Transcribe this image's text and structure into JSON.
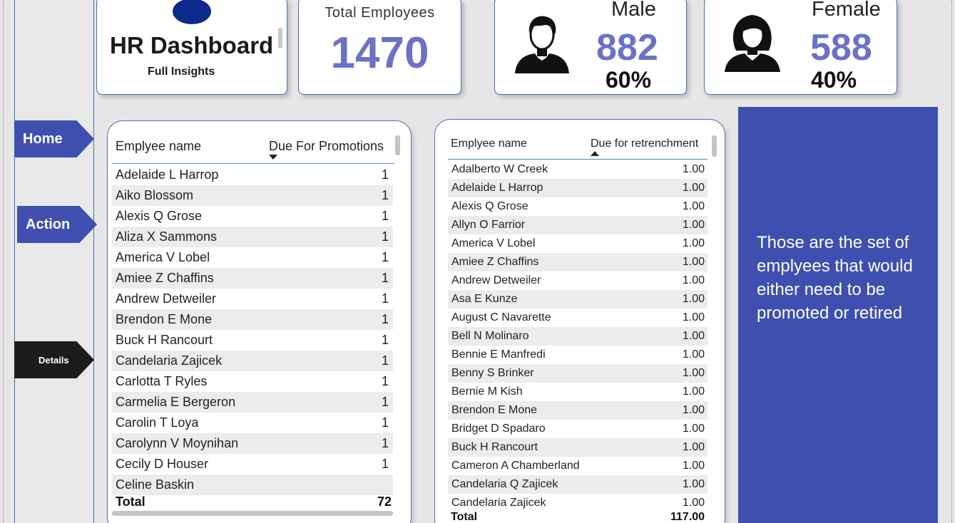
{
  "nav": {
    "home": "Home",
    "action": "Action",
    "details": "Details"
  },
  "header": {
    "title": "HR Dashboard",
    "subtitle": "Full Insights"
  },
  "kpi": {
    "total_label": "Total Employees",
    "total_value": "1470",
    "male_label": "Male",
    "male_value": "882",
    "male_pct": "60%",
    "female_label": "Female",
    "female_value": "588",
    "female_pct": "40%"
  },
  "promotions": {
    "col_name": "Emplyee name",
    "col_value": "Due For Promotions",
    "rows": [
      {
        "name": "Adelaide L Harrop",
        "value": "1"
      },
      {
        "name": "Aiko Blossom",
        "value": "1"
      },
      {
        "name": "Alexis Q Grose",
        "value": "1"
      },
      {
        "name": "Aliza X Sammons",
        "value": "1"
      },
      {
        "name": "America V Lobel",
        "value": "1"
      },
      {
        "name": "Amiee Z Chaffins",
        "value": "1"
      },
      {
        "name": "Andrew Detweiler",
        "value": "1"
      },
      {
        "name": "Brendon E Mone",
        "value": "1"
      },
      {
        "name": "Buck H Rancourt",
        "value": "1"
      },
      {
        "name": "Candelaria Zajicek",
        "value": "1"
      },
      {
        "name": "Carlotta T Ryles",
        "value": "1"
      },
      {
        "name": "Carmelia E Bergeron",
        "value": "1"
      },
      {
        "name": "Carolin T Loya",
        "value": "1"
      },
      {
        "name": "Carolynn V Moynihan",
        "value": "1"
      },
      {
        "name": "Cecily D Houser",
        "value": "1"
      },
      {
        "name": "Celine Baskin",
        "value": ""
      }
    ],
    "total_label": "Total",
    "total_value": "72"
  },
  "retrenchment": {
    "col_name": "Emplyee name",
    "col_value": "Due for retrenchment",
    "rows": [
      {
        "name": "Adalberto W Creek",
        "value": "1.00"
      },
      {
        "name": "Adelaide L Harrop",
        "value": "1.00"
      },
      {
        "name": "Alexis Q Grose",
        "value": "1.00"
      },
      {
        "name": "Allyn O Farrior",
        "value": "1.00"
      },
      {
        "name": "America V Lobel",
        "value": "1.00"
      },
      {
        "name": "Amiee Z Chaffins",
        "value": "1.00"
      },
      {
        "name": "Andrew Detweiler",
        "value": "1.00"
      },
      {
        "name": "Asa E Kunze",
        "value": "1.00"
      },
      {
        "name": "August C Navarette",
        "value": "1.00"
      },
      {
        "name": "Bell N Molinaro",
        "value": "1.00"
      },
      {
        "name": "Bennie E Manfredi",
        "value": "1.00"
      },
      {
        "name": "Benny S Brinker",
        "value": "1.00"
      },
      {
        "name": "Bernie M Kish",
        "value": "1.00"
      },
      {
        "name": "Brendon E Mone",
        "value": "1.00"
      },
      {
        "name": "Bridget D Spadaro",
        "value": "1.00"
      },
      {
        "name": "Buck H Rancourt",
        "value": "1.00"
      },
      {
        "name": "Cameron A Chamberland",
        "value": "1.00"
      },
      {
        "name": "Candelaria Q Zajicek",
        "value": "1.00"
      },
      {
        "name": "Candelaria Zajicek",
        "value": "1.00"
      }
    ],
    "total_label": "Total",
    "total_value": "117.00"
  },
  "info": {
    "text": "Those are the set of emplyees that would either need to be promoted or retired"
  },
  "colors": {
    "accent": "#3f4fb0",
    "kpi_number": "#6b72c4",
    "details_nav": "#1c1c1c"
  }
}
